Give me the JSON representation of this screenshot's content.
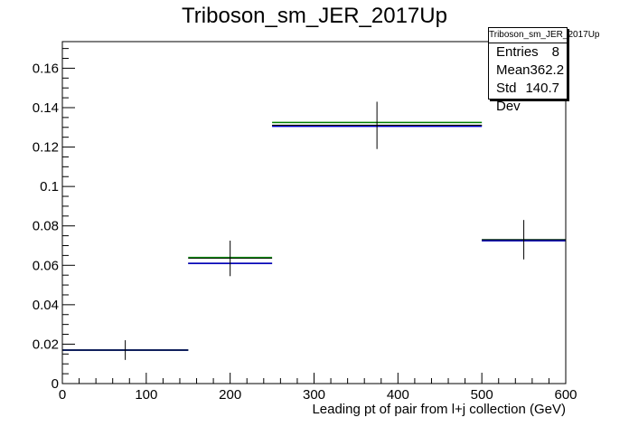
{
  "header": {
    "title": "Triboson_sm_JER_2017Up"
  },
  "stats": {
    "name": "Triboson_sm_JER_2017Up",
    "rows": [
      {
        "label": "Entries",
        "value": "8"
      },
      {
        "label": "Mean",
        "value": "362.2"
      },
      {
        "label": "Std Dev",
        "value": "140.7"
      }
    ]
  },
  "chart_data": {
    "type": "histogram",
    "title": "Triboson_sm_JER_2017Up",
    "xlabel": "Leading pt of pair from l+j collection (GeV)",
    "ylabel": "",
    "xlim": [
      0,
      600
    ],
    "ylim": [
      0,
      0.1735
    ],
    "x_ticks": [
      0,
      100,
      200,
      300,
      400,
      500,
      600
    ],
    "y_ticks": [
      0,
      0.02,
      0.04,
      0.06,
      0.08,
      0.1,
      0.12,
      0.14,
      0.16
    ],
    "y_tick_labels": [
      "0",
      "0.02",
      "0.04",
      "0.06",
      "0.08",
      "0.1",
      "0.12",
      "0.14",
      "0.16"
    ],
    "bins": [
      {
        "low": 0,
        "high": 150,
        "center": 75,
        "value": 0.017,
        "error": 0.005
      },
      {
        "low": 150,
        "high": 250,
        "center": 200,
        "value": 0.0635,
        "error": 0.009
      },
      {
        "low": 250,
        "high": 500,
        "center": 375,
        "value": 0.131,
        "error": 0.012
      },
      {
        "low": 500,
        "high": 600,
        "center": 550,
        "value": 0.073,
        "error": 0.01
      }
    ],
    "series": [
      {
        "color": "#000000",
        "values": [
          0.017,
          0.061,
          0.131,
          0.0725
        ]
      },
      {
        "color": "#008000",
        "values": [
          0.017,
          0.064,
          0.1325,
          0.073
        ]
      },
      {
        "color": "#0000cc",
        "values": [
          0.017,
          0.061,
          0.1305,
          0.0725
        ]
      }
    ],
    "grid": false,
    "legend": "stats box top-right"
  }
}
